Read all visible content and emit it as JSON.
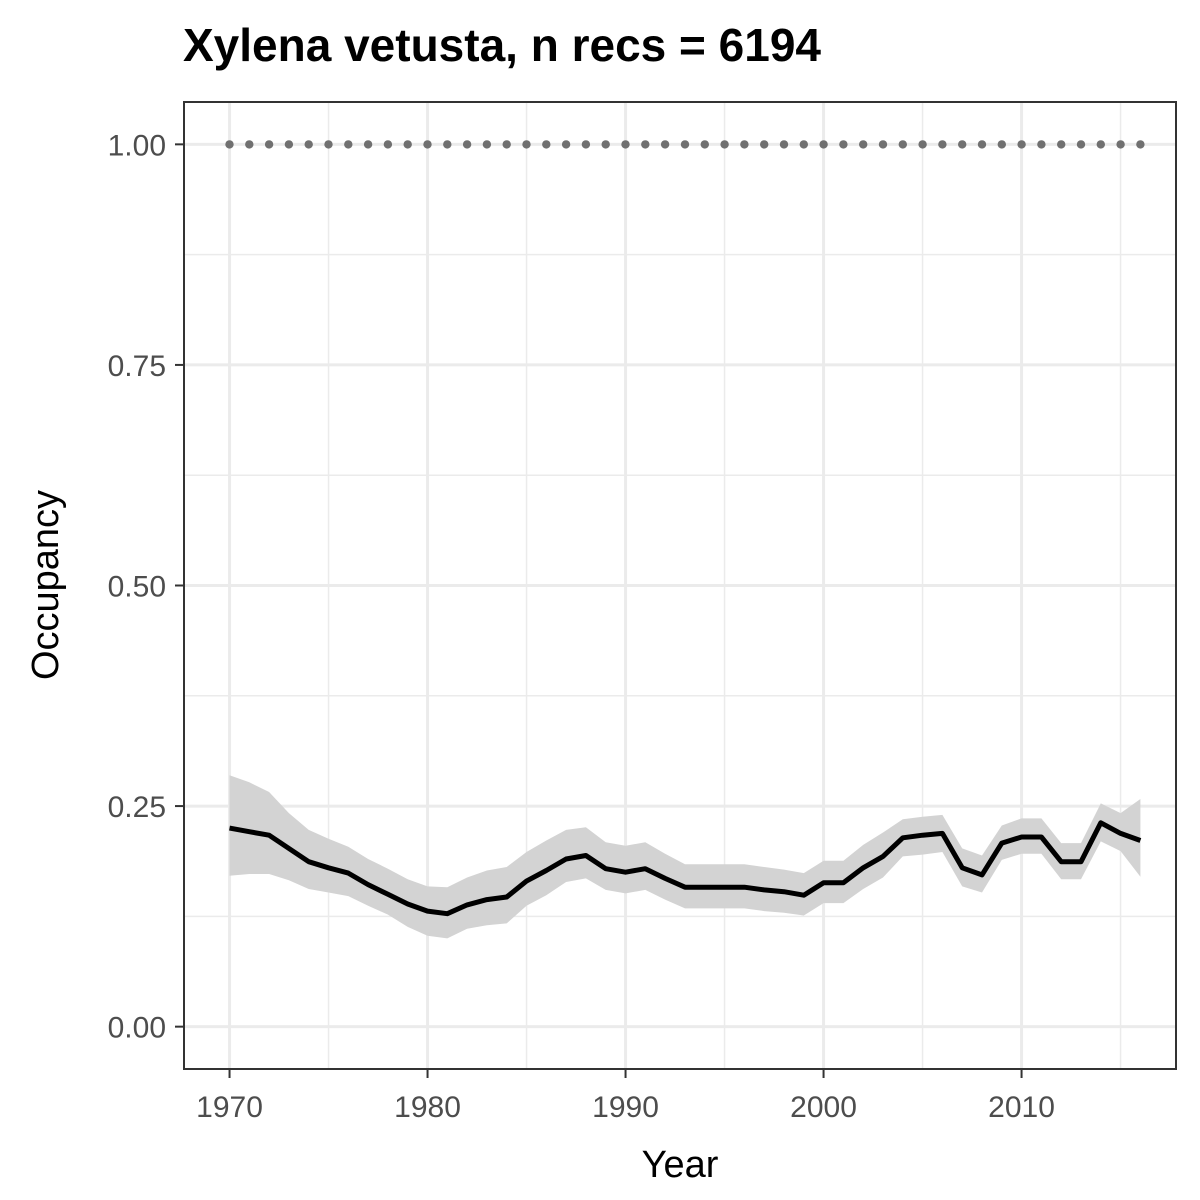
{
  "chart_data": {
    "type": "line",
    "title": "Xylena vetusta, n recs = 6194",
    "xlabel": "Year",
    "ylabel": "Occupancy",
    "xlim": [
      1967.7,
      2017.8
    ],
    "ylim": [
      -0.048,
      1.048
    ],
    "x_ticks": [
      1970,
      1980,
      1990,
      2000,
      2010
    ],
    "x_tick_labels": [
      "1970",
      "1980",
      "1990",
      "2000",
      "2010"
    ],
    "y_ticks": [
      0,
      0.25,
      0.5,
      0.75,
      1.0
    ],
    "y_tick_labels": [
      "0.00",
      "0.25",
      "0.50",
      "0.75",
      "1.00"
    ],
    "grid": true,
    "legend": "none",
    "colors": {
      "line": "#000000",
      "ribbon": "#d3d3d3",
      "dots": "#707070",
      "grid": "#ebebeb",
      "frame": "#333333"
    },
    "series": [
      {
        "x": [
          1970,
          1971,
          1972,
          1973,
          1974,
          1975,
          1976,
          1977,
          1978,
          1979,
          1980,
          1981,
          1982,
          1983,
          1984,
          1985,
          1986,
          1987,
          1988,
          1989,
          1990,
          1991,
          1992,
          1993,
          1994,
          1995,
          1996,
          1997,
          1998,
          1999,
          2000,
          2001,
          2002,
          2003,
          2004,
          2005,
          2006,
          2007,
          2008,
          2009,
          2010,
          2011,
          2012,
          2013,
          2014,
          2015,
          2016
        ],
        "y": [
          0.225,
          0.221,
          0.217,
          0.202,
          0.187,
          0.18,
          0.174,
          0.161,
          0.15,
          0.139,
          0.131,
          0.128,
          0.138,
          0.144,
          0.147,
          0.165,
          0.177,
          0.19,
          0.194,
          0.179,
          0.175,
          0.179,
          0.168,
          0.158,
          0.158,
          0.158,
          0.158,
          0.155,
          0.153,
          0.149,
          0.163,
          0.163,
          0.18,
          0.193,
          0.214,
          0.217,
          0.219,
          0.18,
          0.172,
          0.208,
          0.215,
          0.215,
          0.187,
          0.187,
          0.231,
          0.219,
          0.211
        ],
        "lower": [
          0.171,
          0.173,
          0.173,
          0.166,
          0.156,
          0.152,
          0.148,
          0.137,
          0.127,
          0.113,
          0.103,
          0.1,
          0.111,
          0.115,
          0.117,
          0.137,
          0.149,
          0.164,
          0.168,
          0.155,
          0.151,
          0.155,
          0.144,
          0.134,
          0.134,
          0.134,
          0.134,
          0.131,
          0.129,
          0.126,
          0.14,
          0.14,
          0.156,
          0.169,
          0.193,
          0.195,
          0.198,
          0.159,
          0.152,
          0.189,
          0.196,
          0.196,
          0.167,
          0.167,
          0.21,
          0.199,
          0.17
        ],
        "upper": [
          0.285,
          0.277,
          0.266,
          0.242,
          0.223,
          0.213,
          0.204,
          0.19,
          0.179,
          0.167,
          0.159,
          0.158,
          0.169,
          0.177,
          0.181,
          0.198,
          0.211,
          0.223,
          0.226,
          0.209,
          0.205,
          0.209,
          0.196,
          0.184,
          0.184,
          0.184,
          0.184,
          0.181,
          0.178,
          0.174,
          0.188,
          0.188,
          0.206,
          0.22,
          0.235,
          0.238,
          0.24,
          0.202,
          0.194,
          0.228,
          0.236,
          0.236,
          0.208,
          0.208,
          0.253,
          0.242,
          0.258
        ]
      },
      {
        "x": [
          1970,
          1971,
          1972,
          1973,
          1974,
          1975,
          1976,
          1977,
          1978,
          1979,
          1980,
          1981,
          1982,
          1983,
          1984,
          1985,
          1986,
          1987,
          1988,
          1989,
          1990,
          1991,
          1992,
          1993,
          1994,
          1995,
          1996,
          1997,
          1998,
          1999,
          2000,
          2001,
          2002,
          2003,
          2004,
          2005,
          2006,
          2007,
          2008,
          2009,
          2010,
          2011,
          2012,
          2013,
          2014,
          2015,
          2016
        ],
        "y": [
          1,
          1,
          1,
          1,
          1,
          1,
          1,
          1,
          1,
          1,
          1,
          1,
          1,
          1,
          1,
          1,
          1,
          1,
          1,
          1,
          1,
          1,
          1,
          1,
          1,
          1,
          1,
          1,
          1,
          1,
          1,
          1,
          1,
          1,
          1,
          1,
          1,
          1,
          1,
          1,
          1,
          1,
          1,
          1,
          1,
          1,
          1
        ],
        "style": "dotted"
      }
    ]
  }
}
